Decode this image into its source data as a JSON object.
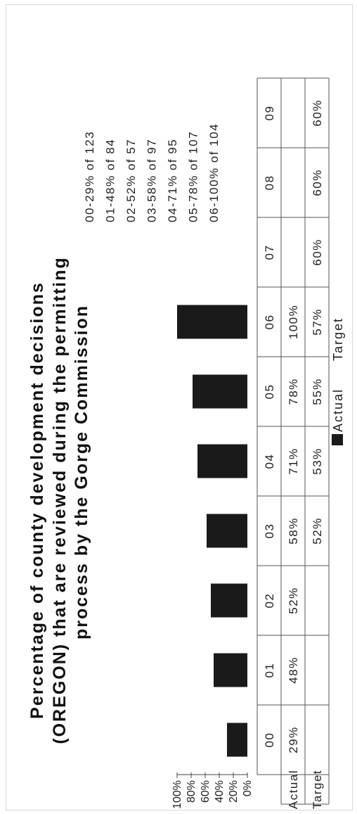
{
  "chart_data": {
    "type": "bar",
    "title_lines": [
      "Percentage of county development decisions",
      "(OREGON) that are reviewed during the permitting",
      "process by the Gorge Commission"
    ],
    "categories": [
      "00",
      "01",
      "02",
      "03",
      "04",
      "05",
      "06",
      "07",
      "08",
      "09"
    ],
    "ylim": [
      0,
      100
    ],
    "y_ticks": [
      "0%",
      "20%",
      "40%",
      "60%",
      "80%",
      "100%"
    ],
    "series": [
      {
        "name": "Actual",
        "values": [
          29,
          48,
          52,
          58,
          71,
          78,
          100,
          null,
          null,
          null
        ],
        "labels": [
          "29%",
          "48%",
          "52%",
          "58%",
          "71%",
          "78%",
          "100%",
          "",
          "",
          ""
        ]
      },
      {
        "name": "Target",
        "values": [
          null,
          null,
          null,
          52,
          53,
          55,
          57,
          60,
          60,
          60
        ],
        "labels": [
          "",
          "",
          "",
          "52%",
          "53%",
          "55%",
          "57%",
          "60%",
          "60%",
          "60%"
        ]
      }
    ],
    "notes": [
      "00-29% of 123",
      "01-48% of 84",
      "02-52% of 57",
      "03-58% of 97",
      "04-71% of 95",
      "05-78% of 107",
      "06-100% of 104"
    ],
    "grid": false,
    "legend_position": "bottom",
    "bar_color": "#1a1a1a"
  }
}
